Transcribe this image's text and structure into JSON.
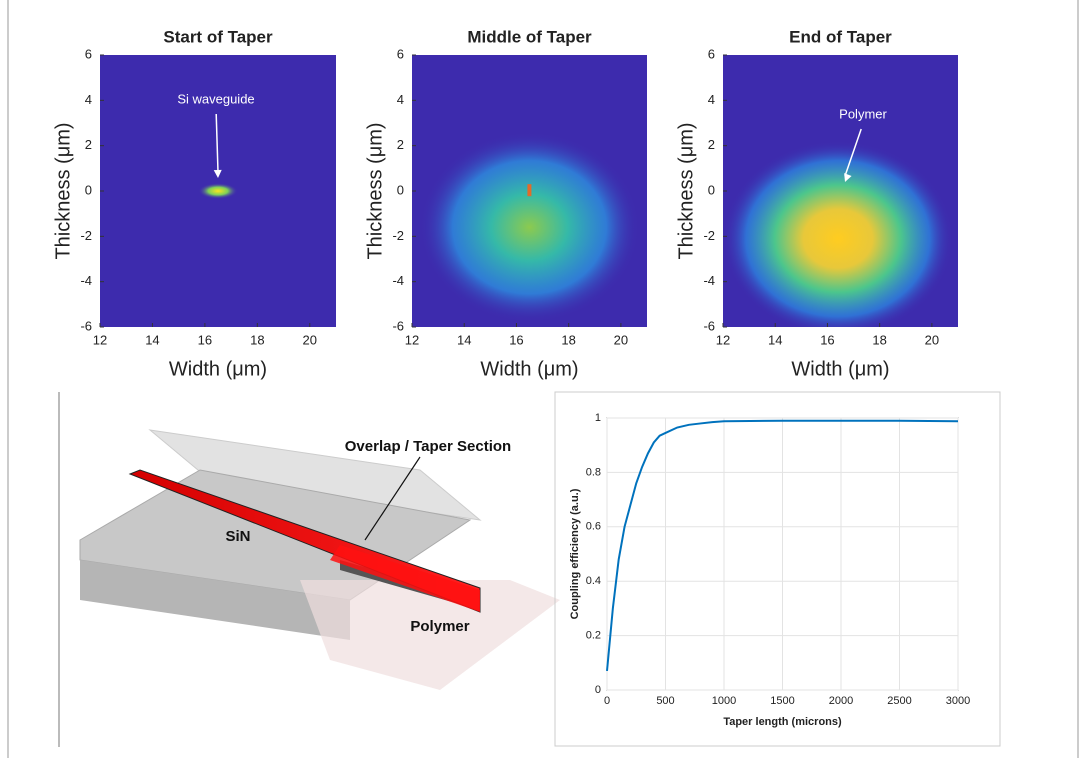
{
  "chart_data": [
    {
      "type": "heatmap",
      "title": "Start of Taper",
      "xlabel": "Width (μm)",
      "ylabel": "Thickness (μm)",
      "color": "#3d2bad",
      "xlim": [
        12,
        21
      ],
      "ylim": [
        -6,
        6
      ],
      "xticks": [
        12,
        14,
        16,
        18,
        20
      ],
      "yticks": [
        -6,
        -4,
        -2,
        0,
        2,
        4,
        6
      ],
      "annotations": [
        {
          "text": "Si waveguide"
        }
      ]
    },
    {
      "type": "heatmap",
      "title": "Middle of Taper",
      "xlabel": "Width (μm)",
      "ylabel": "Thickness (μm)",
      "color": "#3d2bad",
      "xlim": [
        12,
        21
      ],
      "ylim": [
        -6,
        6
      ],
      "xticks": [
        12,
        14,
        16,
        18,
        20
      ],
      "yticks": [
        -6,
        -4,
        -2,
        0,
        2,
        4,
        6
      ],
      "annotations": []
    },
    {
      "type": "heatmap",
      "title": "End of Taper",
      "xlabel": "Width (μm)",
      "ylabel": "Thickness (μm)",
      "color": "#3d2bad",
      "xlim": [
        12,
        21
      ],
      "ylim": [
        -6,
        6
      ],
      "xticks": [
        12,
        14,
        16,
        18,
        20
      ],
      "yticks": [
        -6,
        -4,
        -2,
        0,
        2,
        4,
        6
      ],
      "annotations": [
        {
          "text": "Polymer"
        }
      ]
    },
    {
      "type": "line",
      "xlabel": "Taper length (microns)",
      "ylabel": "Coupling efficiency (a.u.)",
      "grid": true,
      "xlim": [
        0,
        3000
      ],
      "ylim": [
        0,
        1
      ],
      "xticks": [
        0,
        500,
        1000,
        1500,
        2000,
        2500,
        3000
      ],
      "yticks": [
        0,
        0.2,
        0.4,
        0.6,
        0.8,
        1
      ],
      "x": [
        0,
        50,
        100,
        150,
        200,
        250,
        300,
        350,
        400,
        450,
        500,
        600,
        700,
        800,
        900,
        1000,
        1500,
        2000,
        2500,
        3000
      ],
      "series": [
        {
          "color": "#0072bd",
          "values": [
            0.07,
            0.3,
            0.48,
            0.6,
            0.68,
            0.76,
            0.82,
            0.87,
            0.91,
            0.935,
            0.945,
            0.965,
            0.975,
            0.98,
            0.985,
            0.988,
            0.99,
            0.99,
            0.99,
            0.988
          ]
        }
      ]
    }
  ],
  "diagram": {
    "labels": [
      "Overlap / Taper Section",
      "SiN",
      "Polymer"
    ]
  }
}
